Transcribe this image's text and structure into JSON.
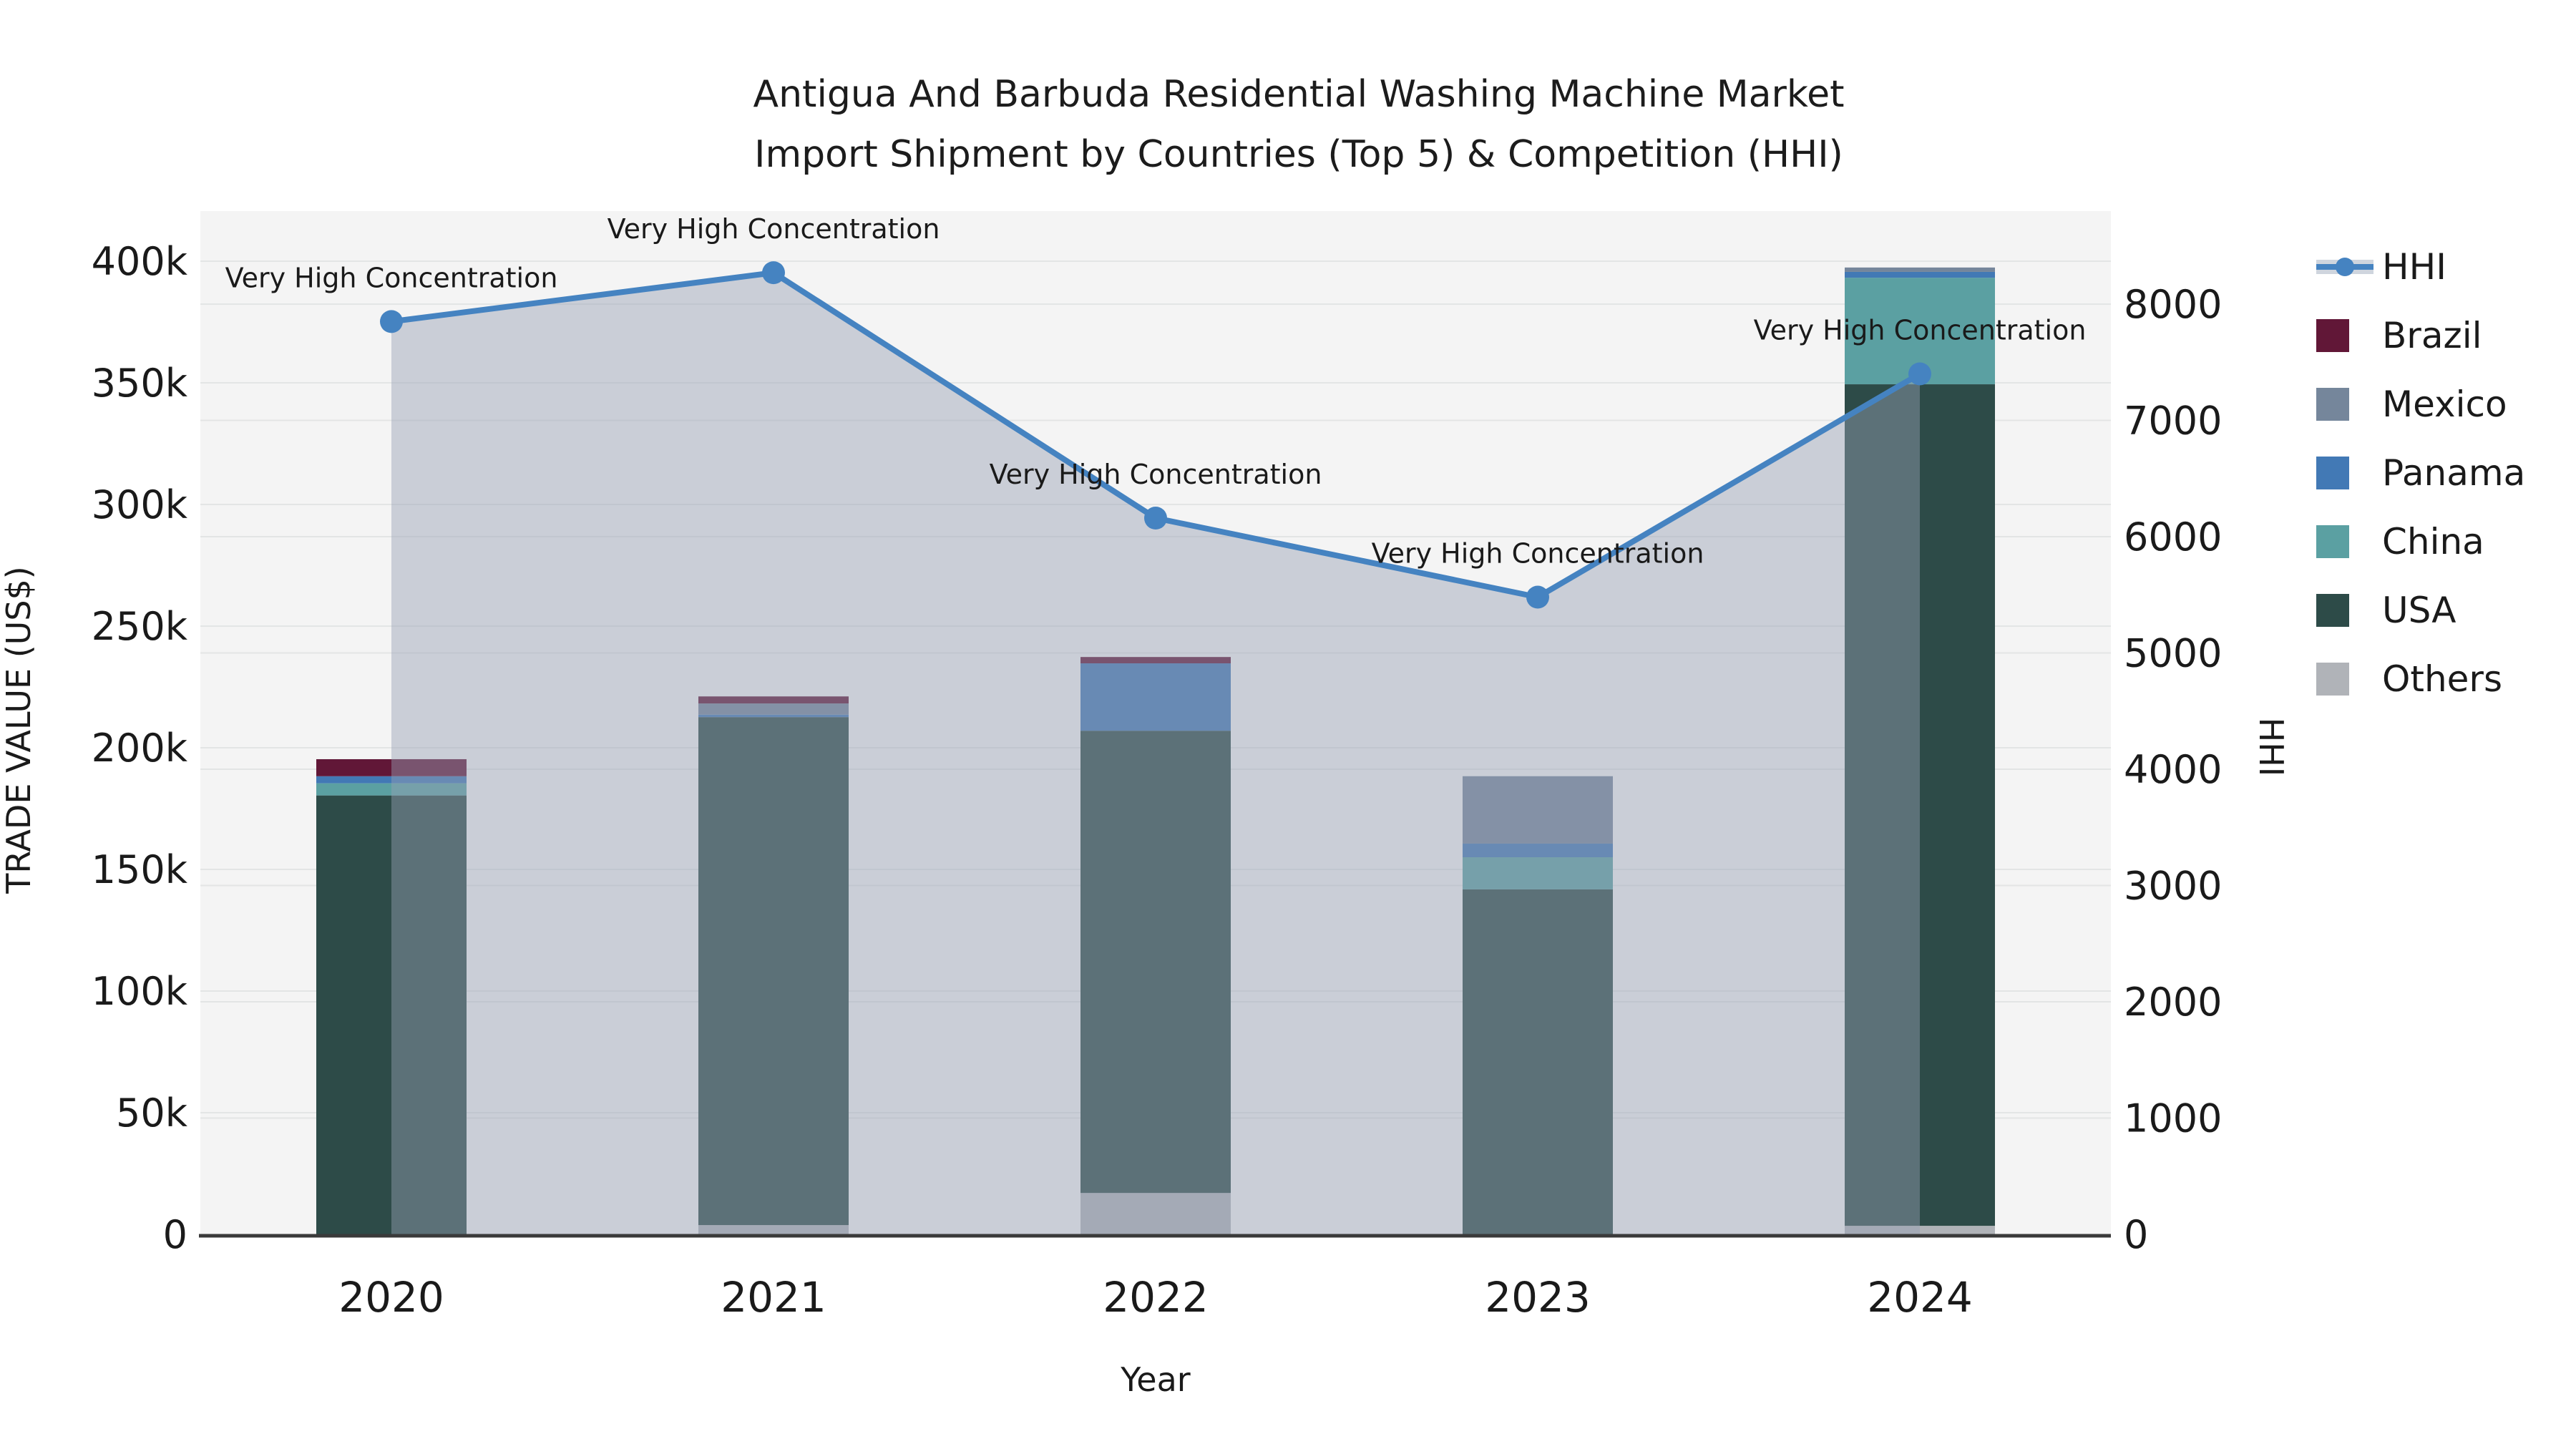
{
  "title": {
    "line1": "Antigua And Barbuda Residential Washing Machine Market",
    "line2": "Import Shipment by Countries (Top 5) & Competition (HHI)"
  },
  "axes": {
    "x_title": "Year",
    "y_left_title": "TRADE VALUE (US$)",
    "y_right_title": "HHI",
    "y_left_tick_labels": [
      "0",
      "50k",
      "100k",
      "150k",
      "200k",
      "250k",
      "300k",
      "350k",
      "400k"
    ],
    "y_left_tick_values": [
      0,
      50000,
      100000,
      150000,
      200000,
      250000,
      300000,
      350000,
      400000
    ],
    "y_right_tick_labels": [
      "0",
      "1000",
      "2000",
      "3000",
      "4000",
      "5000",
      "6000",
      "7000",
      "8000"
    ],
    "y_right_tick_values": [
      0,
      1000,
      2000,
      3000,
      4000,
      5000,
      6000,
      7000,
      8000
    ]
  },
  "chart_data": {
    "type": "bar+line",
    "categories": [
      "2020",
      "2021",
      "2022",
      "2023",
      "2024"
    ],
    "stack_order_bottom_to_top": [
      "Others",
      "USA",
      "China",
      "Panama",
      "Mexico",
      "Brazil"
    ],
    "bar_series": [
      {
        "name": "Others",
        "color": "#b0b3b8",
        "values": [
          0,
          3800,
          17000,
          0,
          3500
        ]
      },
      {
        "name": "USA",
        "color": "#2d4b48",
        "values": [
          180400,
          208800,
          190000,
          141800,
          345900
        ]
      },
      {
        "name": "China",
        "color": "#5ba0a2",
        "values": [
          5000,
          0,
          0,
          13200,
          43800
        ]
      },
      {
        "name": "Panama",
        "color": "#4279b5",
        "values": [
          2900,
          1000,
          27700,
          5600,
          2400
        ]
      },
      {
        "name": "Mexico",
        "color": "#75869b",
        "values": [
          0,
          4600,
          0,
          27700,
          1800
        ]
      },
      {
        "name": "Brazil",
        "color": "#611737",
        "values": [
          7000,
          2900,
          2600,
          0,
          0
        ]
      }
    ],
    "bar_totals": [
      195300,
      221100,
      237300,
      188300,
      397400
    ],
    "line_series": {
      "name": "HHI",
      "color": "#4583c1",
      "values": [
        7850,
        8270,
        6160,
        5480,
        7400
      ]
    },
    "annotations": [
      "Very High Concentration",
      "Very High Concentration",
      "Very High Concentration",
      "Very High Concentration",
      "Very High Concentration"
    ],
    "ylim_left": [
      0,
      400000
    ],
    "ylim_right": [
      0,
      8000
    ],
    "grid": true,
    "legend_position": "right"
  },
  "legend": {
    "items": [
      {
        "label": "HHI",
        "type": "line",
        "color": "#4583c1"
      },
      {
        "label": "Brazil",
        "type": "swatch",
        "color": "#611737"
      },
      {
        "label": "Mexico",
        "type": "swatch",
        "color": "#75869b"
      },
      {
        "label": "Panama",
        "type": "swatch",
        "color": "#4279b5"
      },
      {
        "label": "China",
        "type": "swatch",
        "color": "#5ba0a2"
      },
      {
        "label": "USA",
        "type": "swatch",
        "color": "#2d4b48"
      },
      {
        "label": "Others",
        "type": "swatch",
        "color": "#b0b3b8"
      }
    ]
  },
  "colors": {
    "plot_background": "#f4f4f4",
    "page_background": "#ffffff",
    "grid_line": "#e3e5e5",
    "axis_line": "#3a3a3a",
    "text": "#1a1a1a",
    "hhi_line": "#4583c1",
    "hhi_area_fill": "rgba(150,160,180,0.45)",
    "legend_hhi_band": "#cfd5de"
  }
}
